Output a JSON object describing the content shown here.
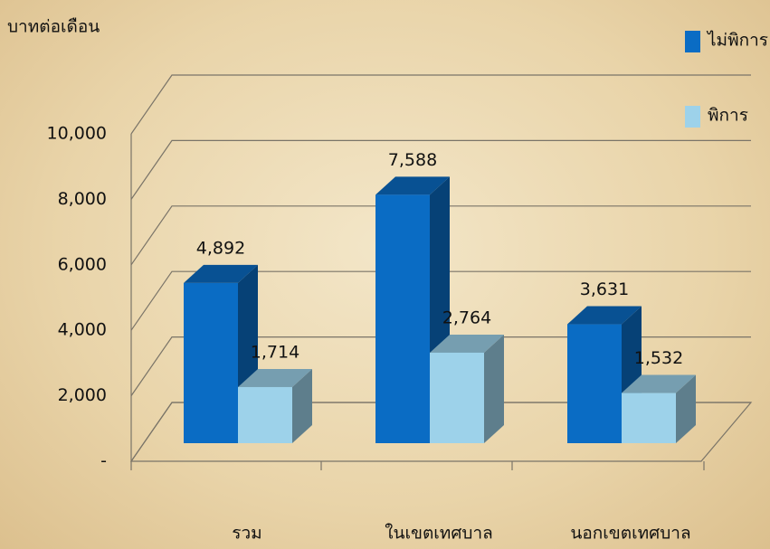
{
  "chart_data": {
    "type": "bar3d",
    "y_axis_label": "บาทต่อเดือน",
    "categories": [
      "รวม",
      "ในเขตเทศบาล",
      "นอกเขตเทศบาล"
    ],
    "series": [
      {
        "name": "ไม่พิการ",
        "color": "#0a6cc4",
        "values": [
          4892,
          7588,
          3631
        ],
        "value_labels": [
          "4,892",
          "7,588",
          "3,631"
        ]
      },
      {
        "name": "พิการ",
        "color": "#9dd2ea",
        "values": [
          1714,
          2764,
          1532
        ],
        "value_labels": [
          "1,714",
          "2,764",
          "1,532"
        ]
      }
    ],
    "ylim": [
      0,
      10000
    ],
    "yticks": [
      {
        "value": 0,
        "label": "-"
      },
      {
        "value": 2000,
        "label": "2,000"
      },
      {
        "value": 4000,
        "label": "4,000"
      },
      {
        "value": 6000,
        "label": "6,000"
      },
      {
        "value": 8000,
        "label": "8,000"
      },
      {
        "value": 10000,
        "label": "10,000"
      }
    ],
    "grid": true,
    "legend": "top-right"
  }
}
